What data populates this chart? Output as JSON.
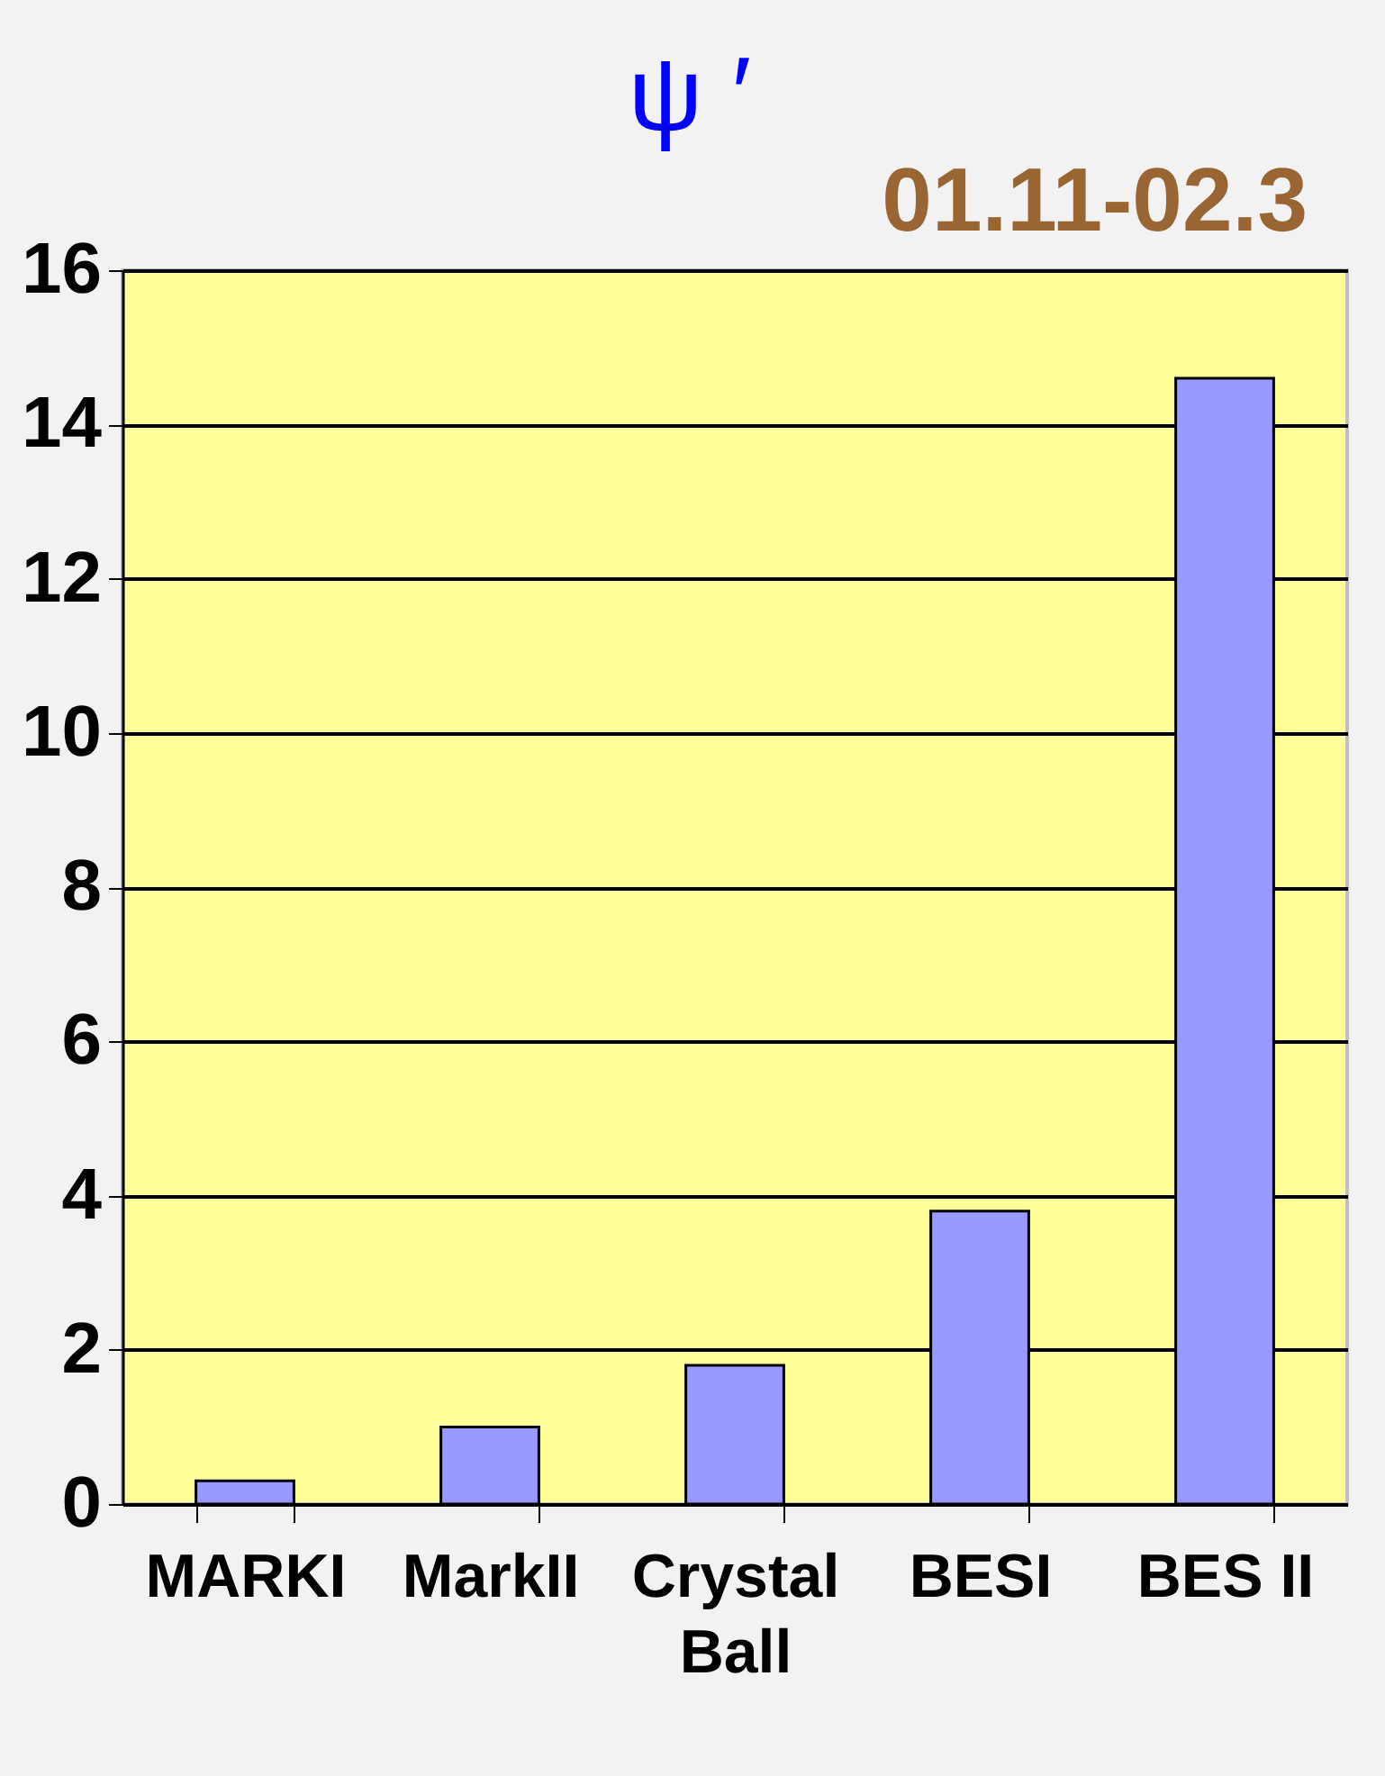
{
  "chart_data": {
    "type": "bar",
    "title": "ψ ′",
    "subtitle": "01.11-02.3",
    "categories": [
      "MARKI",
      "MarkII",
      "Crystal Ball",
      "BESI",
      "BES II"
    ],
    "values": [
      0.3,
      1.0,
      1.8,
      3.8,
      14.6
    ],
    "color": "#9999ff",
    "ylim": [
      0,
      16
    ],
    "yticks": [
      0,
      2,
      4,
      6,
      8,
      10,
      12,
      14,
      16
    ],
    "grid": "y"
  }
}
